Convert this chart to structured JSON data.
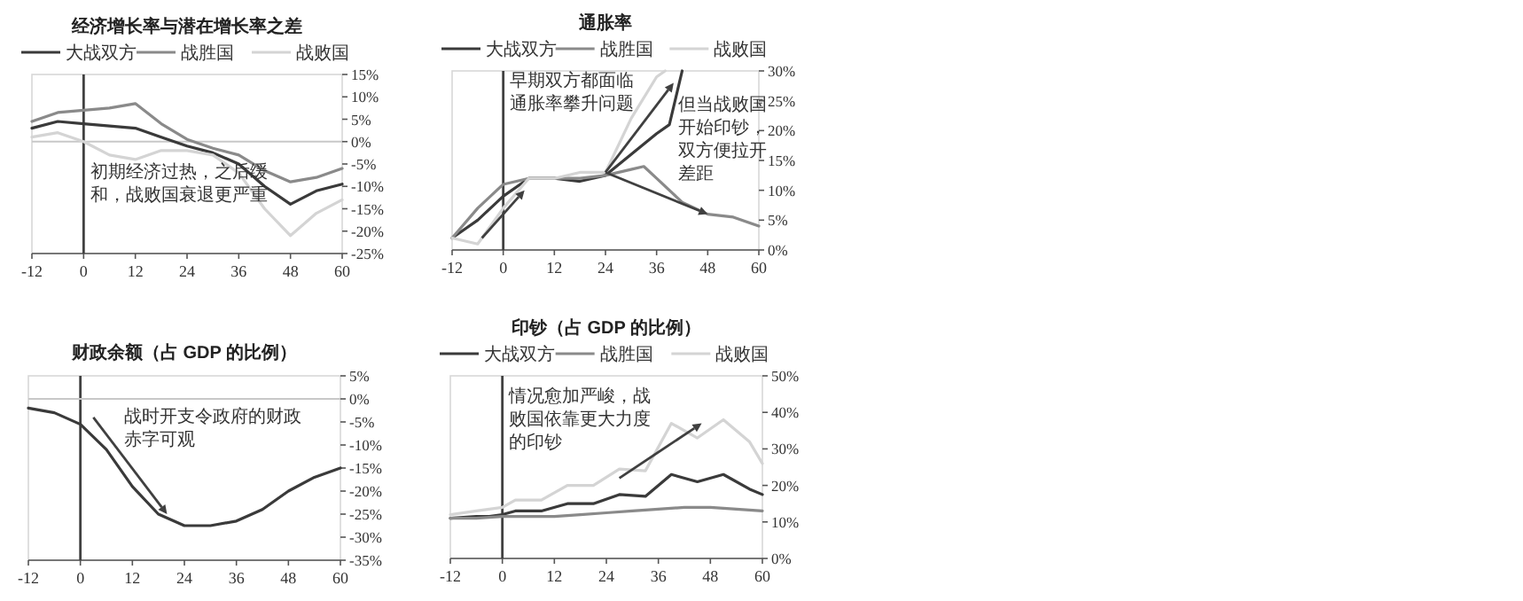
{
  "chart_data": [
    {
      "type": "line",
      "title": "经济增长率与潜在增长率之差",
      "legend": "top",
      "xlim": [
        -12,
        60
      ],
      "xticks": [
        -12,
        0,
        12,
        24,
        36,
        48,
        60
      ],
      "ylim": [
        -25,
        15
      ],
      "yticks": [
        {
          "value": 15,
          "label": "15%"
        },
        {
          "value": 10,
          "label": "10%"
        },
        {
          "value": 5,
          "label": "5%"
        },
        {
          "value": 0,
          "label": "0%"
        },
        {
          "value": -5,
          "label": "-5%"
        },
        {
          "value": -10,
          "label": "-10%"
        },
        {
          "value": -15,
          "label": "-15%"
        },
        {
          "value": -20,
          "label": "-20%"
        },
        {
          "value": -25,
          "label": "-25%"
        }
      ],
      "ref_lines": [
        {
          "axis": "x",
          "value": 0,
          "color": "#404040"
        },
        {
          "axis": "y",
          "value": 0,
          "color": "#c8c8c8"
        }
      ],
      "annotations": [
        "初期经济过热，之后缓和，战败国衰退更严重"
      ],
      "series": [
        {
          "name": "大战双方",
          "color": "#3a3a3a",
          "x": [
            -12,
            -6,
            0,
            6,
            12,
            18,
            24,
            30,
            36,
            42,
            48,
            54,
            60
          ],
          "values": [
            3,
            4.5,
            4,
            3.5,
            3,
            1,
            -1,
            -2.5,
            -5,
            -10,
            -14,
            -11,
            -9.5
          ]
        },
        {
          "name": "战胜国",
          "color": "#8a8a8a",
          "x": [
            -12,
            -6,
            0,
            6,
            12,
            18,
            24,
            30,
            36,
            42,
            48,
            54,
            60
          ],
          "values": [
            4.5,
            6.5,
            7,
            7.5,
            8.5,
            4,
            0.5,
            -1.5,
            -3,
            -6.5,
            -9,
            -8,
            -6
          ]
        },
        {
          "name": "战败国",
          "color": "#d4d4d4",
          "x": [
            -12,
            -6,
            0,
            6,
            12,
            18,
            24,
            30,
            36,
            42,
            48,
            54,
            60
          ],
          "values": [
            1,
            2,
            0,
            -3,
            -4,
            -2,
            -2,
            -3,
            -7,
            -15,
            -21,
            -16,
            -13
          ]
        }
      ]
    },
    {
      "type": "line",
      "title": "通胀率",
      "legend": "top",
      "xlim": [
        -12,
        60
      ],
      "xticks": [
        -12,
        0,
        12,
        24,
        36,
        48,
        60
      ],
      "ylim": [
        0,
        30
      ],
      "yticks": [
        {
          "value": 30,
          "label": "30%"
        },
        {
          "value": 25,
          "label": "25%"
        },
        {
          "value": 20,
          "label": "20%"
        },
        {
          "value": 15,
          "label": "15%"
        },
        {
          "value": 10,
          "label": "10%"
        },
        {
          "value": 5,
          "label": "5%"
        },
        {
          "value": 0,
          "label": "0%"
        }
      ],
      "ref_lines": [
        {
          "axis": "x",
          "value": 0,
          "color": "#404040"
        }
      ],
      "annotations": [
        "早期双方都面临通胀率攀升问题",
        {
          "text": "但当战败国开始印钞，双方便拉开差距",
          "x": 48,
          "y": 6
        }
      ],
      "series": [
        {
          "name": "大战双方",
          "color": "#3a3a3a",
          "x": [
            -12,
            -6,
            0,
            6,
            12,
            18,
            24,
            30,
            36,
            39,
            42
          ],
          "values": [
            2,
            5,
            9,
            12,
            12,
            11.5,
            12.5,
            16,
            19.5,
            21,
            30
          ]
        },
        {
          "name": "战胜国",
          "color": "#8a8a8a",
          "x": [
            -12,
            -6,
            0,
            6,
            12,
            18,
            24,
            30,
            33,
            36,
            42,
            48,
            54,
            60
          ],
          "values": [
            2,
            7,
            11,
            12,
            12,
            12,
            12.5,
            13.5,
            14,
            12,
            8,
            6,
            5.5,
            4
          ]
        },
        {
          "name": "战败国",
          "color": "#d4d4d4",
          "x": [
            -12,
            -6,
            0,
            6,
            12,
            18,
            24,
            30,
            36,
            38
          ],
          "values": [
            2,
            1,
            7,
            12,
            12,
            13,
            13,
            22,
            29,
            30
          ]
        }
      ]
    },
    {
      "type": "line",
      "title": "财政余额（占 GDP 的比例）",
      "xlim": [
        -12,
        60
      ],
      "xticks": [
        -12,
        0,
        12,
        24,
        36,
        48,
        60
      ],
      "ylim": [
        -35,
        5
      ],
      "yticks": [
        {
          "value": 5,
          "label": "5%"
        },
        {
          "value": 0,
          "label": "0%"
        },
        {
          "value": -5,
          "label": "-5%"
        },
        {
          "value": -10,
          "label": "-10%"
        },
        {
          "value": -15,
          "label": "-15%"
        },
        {
          "value": -20,
          "label": "-20%"
        },
        {
          "value": -25,
          "label": "-25%"
        },
        {
          "value": -30,
          "label": "-30%"
        },
        {
          "value": -35,
          "label": "-35%"
        }
      ],
      "ref_lines": [
        {
          "axis": "x",
          "value": 0,
          "color": "#404040"
        },
        {
          "axis": "y",
          "value": 0,
          "color": "#c8c8c8"
        }
      ],
      "annotations": [
        "战时开支令政府的财政赤字可观"
      ],
      "series": [
        {
          "color": "#3a3a3a",
          "x": [
            -12,
            -6,
            0,
            6,
            12,
            18,
            24,
            30,
            36,
            42,
            48,
            54,
            60
          ],
          "values": [
            -2,
            -3,
            -5.5,
            -11,
            -19,
            -25,
            -27.5,
            -27.5,
            -26.5,
            -24,
            -20,
            -17,
            -15
          ]
        }
      ]
    },
    {
      "type": "line",
      "title": "印钞（占 GDP 的比例）",
      "legend": "top",
      "xlim": [
        -12,
        60
      ],
      "xticks": [
        -12,
        0,
        12,
        24,
        36,
        48,
        60
      ],
      "ylim": [
        0,
        50
      ],
      "yticks": [
        {
          "value": 50,
          "label": "50%"
        },
        {
          "value": 40,
          "label": "40%"
        },
        {
          "value": 30,
          "label": "30%"
        },
        {
          "value": 20,
          "label": "20%"
        },
        {
          "value": 10,
          "label": "10%"
        },
        {
          "value": 0,
          "label": "0%"
        }
      ],
      "ref_lines": [
        {
          "axis": "x",
          "value": 0,
          "color": "#404040"
        }
      ],
      "annotations": [
        "情况愈加严峻，战败国依靠更大力度的印钞"
      ],
      "series": [
        {
          "name": "大战双方",
          "color": "#3a3a3a",
          "x": [
            -12,
            -6,
            -3,
            0,
            3,
            9,
            15,
            21,
            27,
            33,
            39,
            45,
            51,
            57,
            60
          ],
          "values": [
            11,
            11.5,
            11.5,
            12,
            13,
            13,
            15,
            15,
            17.5,
            17,
            23,
            21,
            23,
            19,
            17.5
          ]
        },
        {
          "name": "战胜国",
          "color": "#8a8a8a",
          "x": [
            -12,
            -6,
            0,
            6,
            12,
            18,
            24,
            30,
            36,
            42,
            48,
            54,
            60
          ],
          "values": [
            11,
            11,
            11.5,
            11.5,
            11.5,
            12,
            12.5,
            13,
            13.5,
            14,
            14,
            13.5,
            13
          ]
        },
        {
          "name": "战败国",
          "color": "#d4d4d4",
          "x": [
            -12,
            -6,
            0,
            3,
            9,
            15,
            21,
            27,
            33,
            39,
            45,
            51,
            57,
            60
          ],
          "values": [
            12,
            13,
            14,
            16,
            16,
            20,
            20,
            24.5,
            24,
            37,
            33,
            38,
            32,
            26
          ]
        }
      ]
    }
  ]
}
